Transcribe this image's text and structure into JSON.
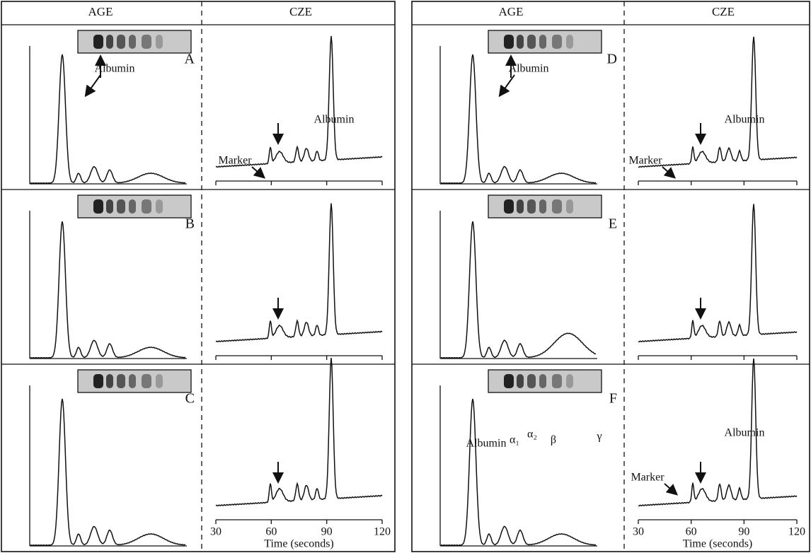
{
  "blocks": [
    {
      "headers": [
        "AGE",
        "CZE"
      ],
      "panels": [
        {
          "label": "A",
          "annotations": [
            "Albumin",
            "Marker",
            "Albumin"
          ]
        },
        {
          "label": "B",
          "annotations": []
        },
        {
          "label": "C",
          "annotations": []
        }
      ],
      "axis": {
        "ticks": [
          "30",
          "60",
          "90",
          "120"
        ],
        "title": "Time (seconds)"
      }
    },
    {
      "headers": [
        "AGE",
        "CZE"
      ],
      "panels": [
        {
          "label": "D",
          "annotations": [
            "Albumin",
            "Marker",
            "Albumin"
          ]
        },
        {
          "label": "E",
          "annotations": []
        },
        {
          "label": "F",
          "annotations": [
            "Albumin",
            "α₁",
            "α₂",
            "β",
            "γ",
            "Marker",
            "Albumin"
          ]
        }
      ],
      "axis": {
        "ticks": [
          "30",
          "60",
          "90",
          "120"
        ],
        "title": "Time (seconds)"
      }
    }
  ]
}
